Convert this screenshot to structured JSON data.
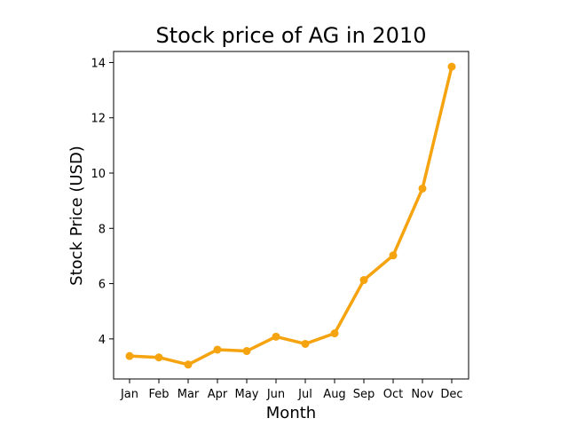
{
  "chart_data": {
    "type": "line",
    "title": "Stock price of AG in 2010",
    "xlabel": "Month",
    "ylabel": "Stock Price (USD)",
    "categories": [
      "Jan",
      "Feb",
      "Mar",
      "Apr",
      "May",
      "Jun",
      "Jul",
      "Aug",
      "Sep",
      "Oct",
      "Nov",
      "Dec"
    ],
    "series": [
      {
        "values": [
          3.38,
          3.33,
          3.07,
          3.61,
          3.56,
          4.08,
          3.82,
          4.2,
          6.13,
          7.02,
          9.44,
          13.85
        ],
        "color": "#f5a30f"
      }
    ],
    "yticks": [
      4,
      6,
      8,
      10,
      12,
      14
    ],
    "ylim": [
      2.55,
      14.4
    ],
    "grid": false,
    "legend": "none"
  }
}
